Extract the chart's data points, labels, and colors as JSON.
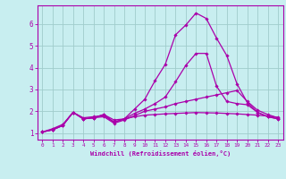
{
  "title": "",
  "xlabel": "Windchill (Refroidissement éolien,°C)",
  "ylabel": "",
  "background_color": "#c8eef0",
  "grid_color": "#a0cccc",
  "line_color": "#aa00aa",
  "xlim": [
    -0.5,
    23.5
  ],
  "ylim": [
    0.7,
    6.85
  ],
  "xticks": [
    0,
    1,
    2,
    3,
    4,
    5,
    6,
    7,
    8,
    9,
    10,
    11,
    12,
    13,
    14,
    15,
    16,
    17,
    18,
    19,
    20,
    21,
    22,
    23
  ],
  "yticks": [
    1,
    2,
    3,
    4,
    5,
    6
  ],
  "lines": [
    {
      "x": [
        0,
        1,
        2,
        3,
        4,
        5,
        6,
        7,
        8,
        9,
        10,
        11,
        12,
        13,
        14,
        15,
        16,
        17,
        18,
        19,
        20,
        21,
        22,
        23
      ],
      "y": [
        1.05,
        1.2,
        1.4,
        1.95,
        1.7,
        1.75,
        1.8,
        1.5,
        1.65,
        1.75,
        1.82,
        1.85,
        1.88,
        1.9,
        1.92,
        1.94,
        1.93,
        1.92,
        1.9,
        1.88,
        1.85,
        1.82,
        1.78,
        1.72
      ]
    },
    {
      "x": [
        0,
        1,
        2,
        3,
        4,
        5,
        6,
        7,
        8,
        9,
        10,
        11,
        12,
        13,
        14,
        15,
        16,
        17,
        18,
        19,
        20,
        21,
        22,
        23
      ],
      "y": [
        1.05,
        1.15,
        1.35,
        1.95,
        1.65,
        1.7,
        1.75,
        1.45,
        1.6,
        1.8,
        2.0,
        2.1,
        2.2,
        2.35,
        2.45,
        2.55,
        2.65,
        2.75,
        2.85,
        2.95,
        2.45,
        2.05,
        1.85,
        1.7
      ]
    },
    {
      "x": [
        0,
        1,
        2,
        3,
        4,
        5,
        6,
        7,
        8,
        9,
        10,
        11,
        12,
        13,
        14,
        15,
        16,
        17,
        18,
        19,
        20,
        21,
        22,
        23
      ],
      "y": [
        1.05,
        1.15,
        1.35,
        1.95,
        1.65,
        1.7,
        1.85,
        1.6,
        1.65,
        1.9,
        2.1,
        2.35,
        2.65,
        3.35,
        4.1,
        4.65,
        4.65,
        3.15,
        2.45,
        2.35,
        2.3,
        1.95,
        1.75,
        1.65
      ]
    },
    {
      "x": [
        0,
        1,
        2,
        3,
        4,
        5,
        6,
        7,
        8,
        9,
        10,
        11,
        12,
        13,
        14,
        15,
        16,
        17,
        18,
        19,
        20,
        21,
        22,
        23
      ],
      "y": [
        1.05,
        1.15,
        1.35,
        1.95,
        1.65,
        1.7,
        1.85,
        1.5,
        1.65,
        2.1,
        2.55,
        3.4,
        4.15,
        5.5,
        5.95,
        6.5,
        6.25,
        5.35,
        4.55,
        3.25,
        2.4,
        1.95,
        1.75,
        1.65
      ]
    }
  ]
}
